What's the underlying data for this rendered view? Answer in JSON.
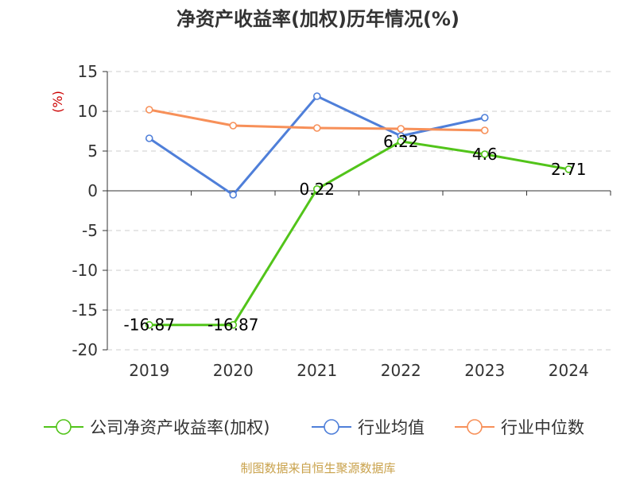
{
  "chart_data": {
    "type": "line",
    "title": "净资产收益率(加权)历年情况(%)",
    "ylabel": "(%)",
    "xlabel": "",
    "categories": [
      "2019",
      "2020",
      "2021",
      "2022",
      "2023",
      "2024"
    ],
    "ylim": [
      -20,
      15
    ],
    "yticks": [
      15,
      10,
      5,
      0,
      -5,
      -10,
      -15,
      -20
    ],
    "grid": true,
    "legend_position": "bottom",
    "series": [
      {
        "name": "公司净资产收益率(加权)",
        "color": "#52c41a",
        "values": [
          -16.87,
          -16.87,
          0.22,
          6.22,
          4.6,
          2.71
        ],
        "labels": [
          "-16.87",
          "-16.87",
          "0.22",
          "6.22",
          "4.6",
          "2.71"
        ]
      },
      {
        "name": "行业均值",
        "color": "#4f7fd9",
        "values": [
          6.6,
          -0.5,
          11.9,
          6.9,
          9.2,
          null
        ]
      },
      {
        "name": "行业中位数",
        "color": "#f79059",
        "values": [
          10.2,
          8.2,
          7.9,
          7.8,
          7.6,
          null
        ]
      }
    ],
    "source": "制图数据来自恒生聚源数据库"
  },
  "colors": {
    "axis": "#333333",
    "grid": "#cccccc",
    "ylabel": "#cc0000",
    "source": "#c9a24c"
  }
}
